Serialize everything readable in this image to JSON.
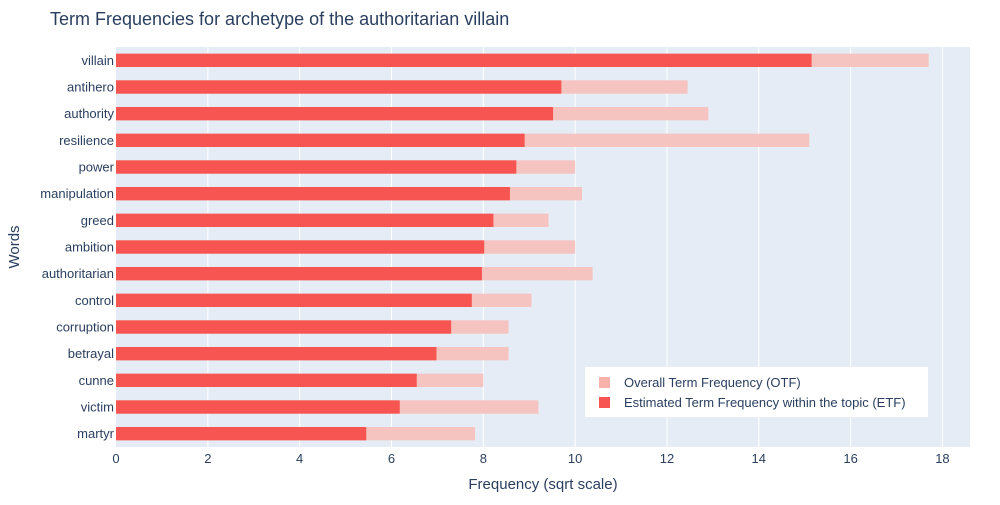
{
  "chart_data": {
    "type": "bar",
    "orientation": "horizontal",
    "barmode": "overlay",
    "title": "Term Frequencies for archetype of the authoritarian villain",
    "xlabel": "Frequency (sqrt scale)",
    "ylabel": "Words",
    "xlim": [
      0,
      18.6
    ],
    "xticks": [
      0,
      2,
      4,
      6,
      8,
      10,
      12,
      14,
      16,
      18
    ],
    "grid": true,
    "legend_position": "bottom-right",
    "categories": [
      "villain",
      "antihero",
      "authority",
      "resilience",
      "power",
      "manipulation",
      "greed",
      "ambition",
      "authoritarian",
      "control",
      "corruption",
      "betrayal",
      "cunne",
      "victim",
      "martyr"
    ],
    "series": [
      {
        "name": "Overall Term Frequency (OTF)",
        "color": "#f5c4c0",
        "legend_color": "#f9b2aa",
        "values": [
          17.7,
          12.45,
          12.9,
          15.1,
          10.0,
          10.15,
          9.42,
          10.0,
          10.38,
          9.05,
          8.55,
          8.55,
          8.0,
          9.2,
          7.82
        ]
      },
      {
        "name": "Estimated Term Frequency within the topic (ETF)",
        "color": "#f75551",
        "legend_color": "#f75551",
        "values": [
          15.15,
          9.7,
          9.52,
          8.9,
          8.72,
          8.58,
          8.22,
          8.02,
          7.97,
          7.75,
          7.3,
          6.98,
          6.55,
          6.18,
          5.45
        ]
      }
    ]
  }
}
